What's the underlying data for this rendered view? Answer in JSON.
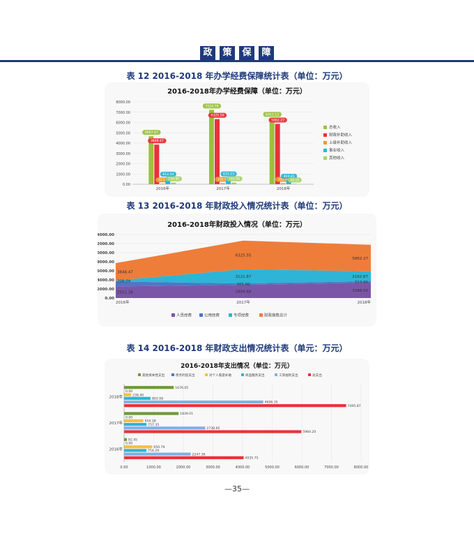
{
  "header": {
    "chars": [
      "政",
      "策",
      "保",
      "障"
    ]
  },
  "captions": {
    "t12": "表 12   2016-2018 年办学经费保障统计表（单位：万元）",
    "t13": "表 13   2016-2018 年财政投入情况统计表（单位：万元）",
    "t14": "表 14   2016-2018 年财政支出情况统计表（单元：万元）"
  },
  "page_number": "—35—",
  "colors": {
    "header": "#1f3a7a",
    "green": "#9bc23c",
    "red": "#e8323a",
    "orange": "#f09a2a",
    "cyan": "#2eb4d6",
    "lightgreen": "#a8d36a",
    "purple": "#7b56a8",
    "carrot": "#ee7d3a",
    "blue": "#4b78c6",
    "skyblue": "#7ab3e6",
    "darkgreen": "#6f9a3a",
    "yellow": "#f3c23a"
  },
  "chart_data": [
    {
      "type": "bar",
      "title": "2016-2018年办学经费保障（单位：万元）",
      "categories": [
        "2016年",
        "2017年",
        "2018年"
      ],
      "ylim": [
        0,
        8000
      ],
      "yticks": [
        "0.00",
        "1000.00",
        "2000.00",
        "3000.00",
        "4000.00",
        "5000.00",
        "6000.00",
        "7000.00",
        "8000.00"
      ],
      "legend_position": "right",
      "series": [
        {
          "name": "总收入",
          "values": [
            4667.47,
            7224.79,
            6413.13
          ],
          "labels": [
            "4667.47",
            "7224.79",
            "6413.13"
          ]
        },
        {
          "name": "财政补助收入",
          "values": [
            3848.47,
            6325.56,
            5862.27
          ],
          "labels": [
            "3848.47",
            "6325.56",
            "5862.27"
          ]
        },
        {
          "name": "上级补助收入",
          "values": [
            51.56,
            102.92,
            102.92
          ],
          "labels": [
            "51.56",
            "102.92",
            "102.92"
          ]
        },
        {
          "name": "事业收入",
          "values": [
            612.54,
            633.23,
            404.81
          ],
          "labels": [
            "612.54",
            "633.23",
            "404.81"
          ]
        },
        {
          "name": "其他收入",
          "values": [
            154.9,
            163.08,
            43.1
          ],
          "labels": [
            "154.90",
            "163.08",
            "43.10"
          ]
        }
      ]
    },
    {
      "type": "area",
      "title": "2016-2018年财政投入情况（单位：万元）",
      "categories": [
        "2016年",
        "2017年",
        "2018年"
      ],
      "ylim": [
        0,
        14000
      ],
      "yticks": [
        "0.00",
        "2000.00",
        "4000.00",
        "6000.00",
        "8000.00",
        "10000.00",
        "12000.00",
        "14000.00"
      ],
      "legend_position": "bottom",
      "stacked": true,
      "series": [
        {
          "name": "人员经费",
          "values": [
            2552.38,
            2894.68,
            3386.5
          ],
          "labels": [
            "2552.38",
            "2894.68",
            "3386.50"
          ]
        },
        {
          "name": "公用经费",
          "values": [
            1088.0,
            305.0,
            313.9
          ],
          "labels": [
            "",
            "305.00",
            "313.90"
          ]
        },
        {
          "name": "专项经费",
          "values": [
            208.09,
            3121.87,
            2162.87
          ],
          "labels": [
            "208.09",
            "3121.87",
            "2162.87"
          ]
        },
        {
          "name": "财政拨款总计",
          "values": [
            3848.47,
            6325.55,
            5862.27
          ],
          "labels": [
            "3848.47",
            "6325.55",
            "5862.27"
          ]
        }
      ]
    },
    {
      "type": "bar",
      "orientation": "horizontal",
      "title": "2016-2018年支出情况（单位：万元）",
      "categories": [
        "2018年",
        "2017年",
        "2016年"
      ],
      "xlim": [
        0,
        8000
      ],
      "xticks": [
        "0.00",
        "1000.00",
        "2000.00",
        "3000.00",
        "4000.00",
        "5000.00",
        "6000.00",
        "7000.00",
        "8000.00"
      ],
      "legend_position": "top",
      "series": [
        {
          "name": "其他资本性支出",
          "values": [
            1676.05,
            1839.01,
            92.45
          ],
          "labels": [
            "1676.05",
            "1839.01",
            "92.45"
          ]
        },
        {
          "name": "债务利息支出",
          "values": [
            0,
            0,
            0
          ],
          "labels": [
            "0.00",
            "0.00",
            "0.00"
          ]
        },
        {
          "name": "对个人家庭补助",
          "values": [
            238.4,
            650.18,
            950.79
          ],
          "labels": [
            "238.40",
            "650.18",
            "950.79"
          ]
        },
        {
          "name": "商品服务支出",
          "values": [
            893.08,
            757.35,
            754.29
          ],
          "labels": [
            "893.08",
            "757.35",
            "754.29"
          ]
        },
        {
          "name": "工资福利支出",
          "values": [
            4696.35,
            2738.95,
            2247.36
          ],
          "labels": [
            "4696.35",
            "2738.95",
            "2247.36"
          ]
        },
        {
          "name": "总支出",
          "values": [
            7495.87,
            5984.2,
            4035.75
          ],
          "labels": [
            "7495.87",
            "5984.20",
            "4035.75"
          ]
        }
      ]
    }
  ]
}
